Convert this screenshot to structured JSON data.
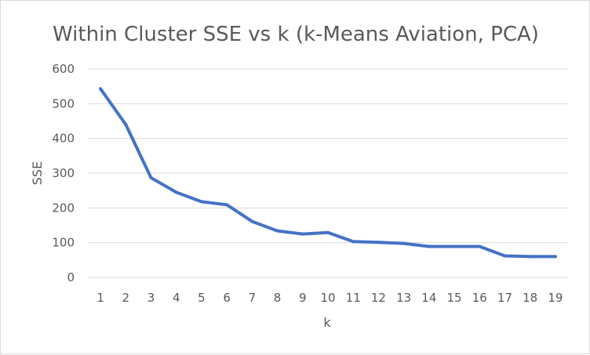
{
  "chart_data": {
    "type": "line",
    "title": "Within Cluster SSE vs k (k-Means Aviation, PCA)",
    "xlabel": "k",
    "ylabel": "SSE",
    "x": [
      1,
      2,
      3,
      4,
      5,
      6,
      7,
      8,
      9,
      10,
      11,
      12,
      13,
      14,
      15,
      16,
      17,
      18,
      19
    ],
    "series": [
      {
        "values": [
          543,
          440,
          287,
          245,
          218,
          209,
          161,
          134,
          125,
          129,
          103,
          101,
          98,
          89,
          89,
          89,
          62,
          60,
          60
        ]
      }
    ],
    "ylim": [
      0,
      600
    ],
    "yticks": [
      0,
      100,
      200,
      300,
      400,
      500,
      600
    ],
    "grid": true,
    "legend": false,
    "colors": {
      "series": "#4472c4",
      "grid": "#d9d9d9",
      "text": "#595959"
    }
  }
}
